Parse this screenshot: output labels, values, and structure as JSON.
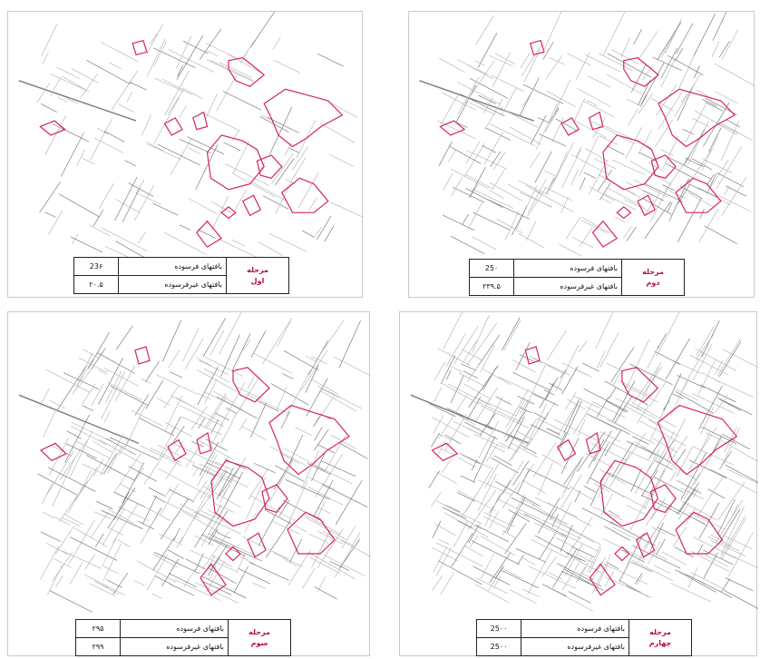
{
  "colors": {
    "stage_text": "#b0123f",
    "outline": "#d8245c",
    "street": "#7d7d7d",
    "street_light": "#b9b9b9"
  },
  "panels": [
    {
      "stage_line1": "مرحله",
      "stage_line2": "اول",
      "row1_label": "بافتهای فرسوده",
      "row1_value": "23۶",
      "row2_label": "بافتهای غیرفرسوده",
      "row2_value": "۲۰.۵",
      "street_density": 1
    },
    {
      "stage_line1": "مرحله",
      "stage_line2": "دوم",
      "row1_label": "بافتهای فرسوده",
      "row1_value": "25۰",
      "row2_label": "بافتهای غیرفرسوده",
      "row2_value": "۲۳۹.۵",
      "street_density": 2
    },
    {
      "stage_line1": "مرحله",
      "stage_line2": "سوم",
      "row1_label": "بافتهای فرسوده",
      "row1_value": "۲۹۵",
      "row2_label": "بافتهای غیرفرسوده",
      "row2_value": "۲۹۹",
      "street_density": 3
    },
    {
      "stage_line1": "مرحله",
      "stage_line2": "چهارم",
      "row1_label": "بافتهای فرسوده",
      "row1_value": "25۰۰",
      "row2_label": "بافتهای غیرفرسوده",
      "row2_value": "25۰۰",
      "street_density": 4
    }
  ]
}
